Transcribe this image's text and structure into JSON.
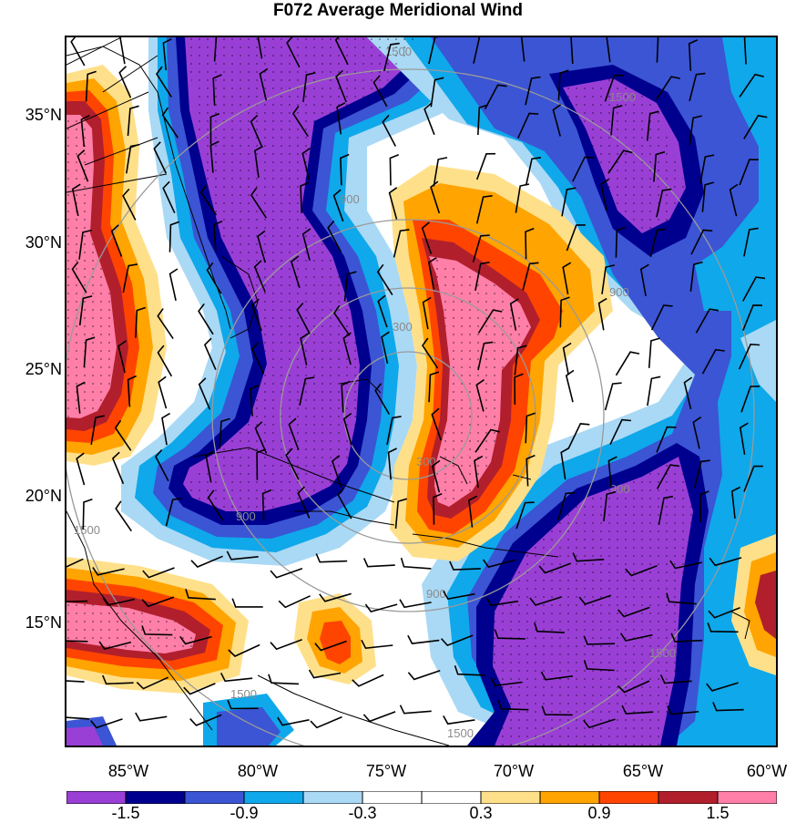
{
  "title": "F072 Average Meridional Wind",
  "lat_labels": [
    "35°N",
    "30°N",
    "25°N",
    "20°N",
    "15°N"
  ],
  "lon_labels": [
    "85°W",
    "80°W",
    "75°W",
    "70°W",
    "65°W",
    "60°W"
  ],
  "colorbar_labels": [
    "-1.5",
    "-0.9",
    "-0.3",
    "0.3",
    "0.9",
    "1.5"
  ],
  "colorbar_colors": [
    "#9a3fd6",
    "#00008f",
    "#3b55d4",
    "#0fa8ea",
    "#a9d9f5",
    "#ffffff",
    "#ffffff",
    "#ffe08a",
    "#ffa400",
    "#ff4400",
    "#b11f2c",
    "#ff7fa8"
  ],
  "range_ring_labels": [
    "1500",
    "1500",
    "900",
    "900",
    "300",
    "300",
    "900",
    "900",
    "900",
    "1500",
    "1500",
    "1500",
    "1500"
  ],
  "colors": {
    "strong_neg": "#9a3fd6",
    "neg2": "#00008f",
    "neg3": "#3b55d4",
    "neg4": "#0fa8ea",
    "neg5": "#a9d9f5",
    "pos1": "#ffe08a",
    "pos2": "#ffa400",
    "pos3": "#ff4400",
    "pos4": "#b11f2c",
    "strong_pos": "#ff7fa8",
    "ring": "#9a9a9a"
  }
}
